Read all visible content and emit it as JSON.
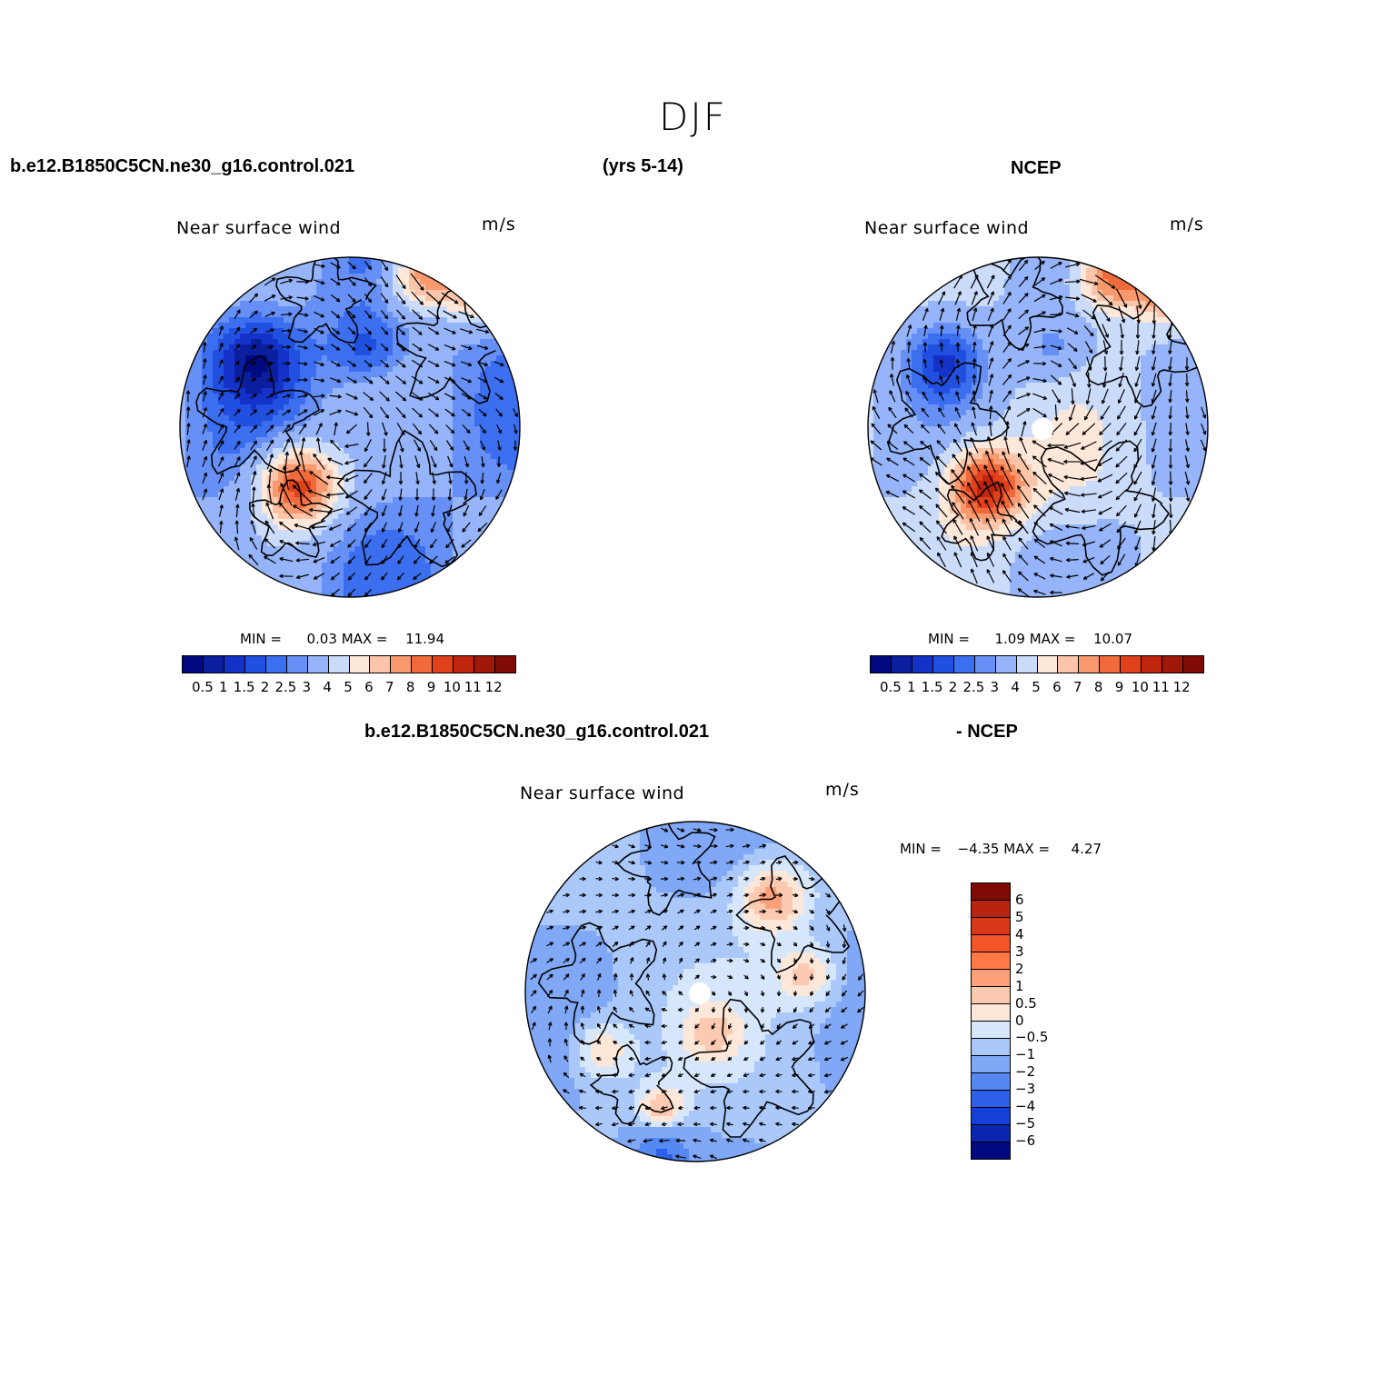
{
  "season": "DJF",
  "header": {
    "case_name": "b.e12.B1850C5CN.ne30_g16.control.021",
    "years": "(yrs 5-14)",
    "obs_name": "NCEP",
    "diff_case": "b.e12.B1850C5CN.ne30_g16.control.021",
    "diff_suffix": "- NCEP"
  },
  "panels": [
    {
      "id": "model",
      "title": "Near surface wind",
      "units": "m/s",
      "min_label": "MIN =",
      "min_value": "0.03",
      "max_label": "MAX =",
      "max_value": "11.94",
      "data_min": 0.03,
      "data_max": 11.94
    },
    {
      "id": "ncep",
      "title": "Near surface wind",
      "units": "m/s",
      "min_label": "MIN =",
      "min_value": "1.09",
      "max_label": "MAX =",
      "max_value": "10.07",
      "data_min": 1.09,
      "data_max": 10.07
    },
    {
      "id": "diff",
      "title": "Near surface wind",
      "units": "m/s",
      "min_label": "MIN =",
      "min_value": "−4.35",
      "max_label": "MAX =",
      "max_value": "4.27",
      "data_min": -4.35,
      "data_max": 4.27
    }
  ],
  "colorbar_abs": {
    "levels": [
      "0.5",
      "1",
      "1.5",
      "2",
      "2.5",
      "3",
      "4",
      "5",
      "6",
      "7",
      "8",
      "9",
      "10",
      "11",
      "12"
    ],
    "colors": [
      "#000a80",
      "#0a1e9e",
      "#1432c8",
      "#2150e0",
      "#3c6ef0",
      "#6690f5",
      "#96b4fa",
      "#cbdcfb",
      "#fde7d8",
      "#fcc4a8",
      "#f8996e",
      "#f06a3c",
      "#e0401a",
      "#c0260e",
      "#a01808",
      "#800a05"
    ]
  },
  "colorbar_diff": {
    "levels": [
      "6",
      "5",
      "4",
      "3",
      "2",
      "1",
      "0.5",
      "0",
      "−0.5",
      "−1",
      "−2",
      "−3",
      "−4",
      "−5",
      "−6"
    ],
    "colors": [
      "#800a05",
      "#b82410",
      "#d83818",
      "#f25528",
      "#ff7845",
      "#fca07a",
      "#fdc9b0",
      "#fde7d8",
      "#d6e6fb",
      "#aac8fa",
      "#80a8f6",
      "#5588f0",
      "#2c60e8",
      "#1440d8",
      "#0a26b0",
      "#000a80"
    ]
  }
}
